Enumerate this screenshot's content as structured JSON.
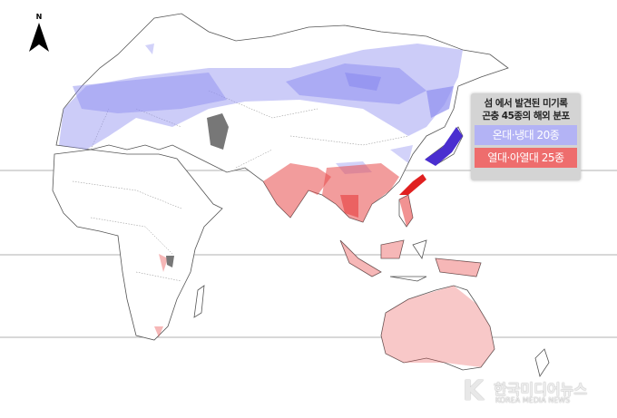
{
  "north_arrow": {
    "label": "N"
  },
  "legend": {
    "title_line1": "섬 에서 발견된 미기록",
    "title_line2": "곤충 45종의 해외 분포",
    "items": [
      {
        "label": "온대·냉대 20종",
        "color": "#b3b3f5"
      },
      {
        "label": "열대·아열대 25종",
        "color": "#ee6d6d"
      }
    ]
  },
  "watermark": {
    "logo": "K",
    "name": "한국미디어뉴스",
    "subtitle": "KOREA MEDIA NEWS"
  },
  "colors": {
    "temperate": "#8f8ff0",
    "tropical": "#e84a4a",
    "unrecorded": "#777777"
  }
}
